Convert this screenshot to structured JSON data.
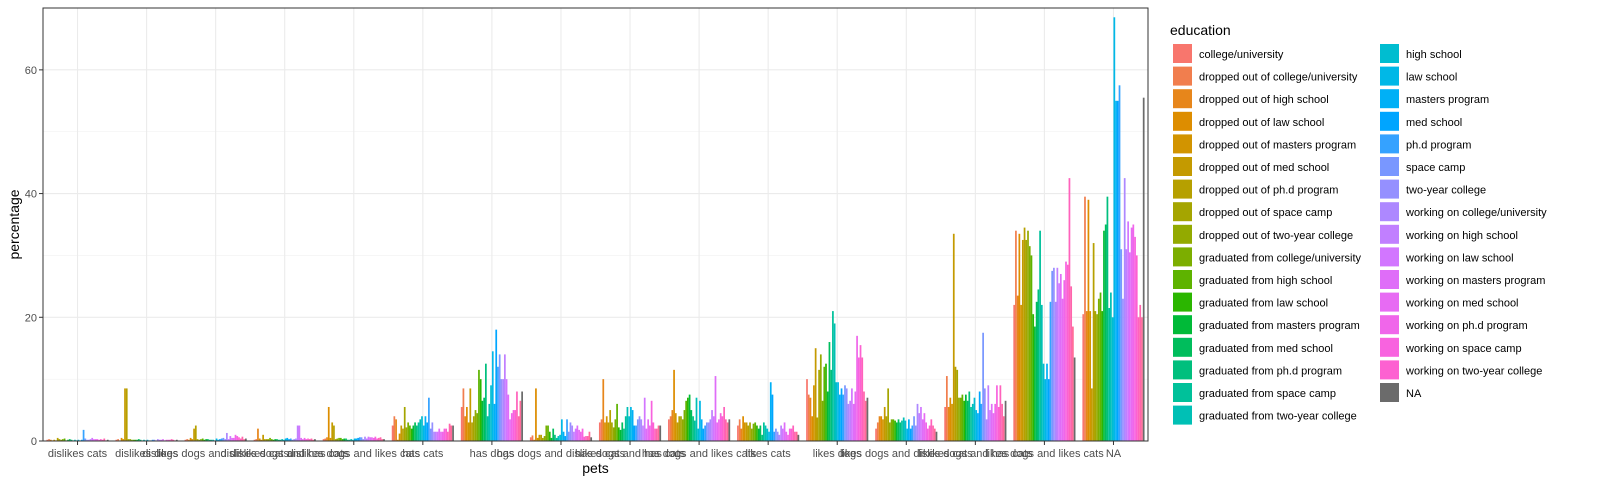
{
  "chart_data": {
    "type": "bar",
    "xlabel": "pets",
    "ylabel": "percentage",
    "ylim": [
      0,
      70
    ],
    "yticks": [
      0,
      20,
      40,
      60
    ],
    "grid": true,
    "legend_position": "right",
    "legend_title": "education",
    "categories": [
      "dislikes cats",
      "dislikes dogs",
      "dislikes dogs and dislikes cats",
      "dislikes dogs and has cats",
      "dislikes dogs and likes cats",
      "has cats",
      "has dogs",
      "has dogs and dislikes cats",
      "has dogs and has cats",
      "has dogs and likes cats",
      "likes cats",
      "likes dogs",
      "likes dogs and dislikes cats",
      "likes dogs and has cats",
      "likes dogs and likes cats",
      "NA"
    ],
    "series": [
      {
        "name": "college/university",
        "color": "#F8766D",
        "values": [
          0.2,
          0.2,
          0.2,
          0.2,
          0.3,
          2.5,
          5.5,
          0.6,
          3,
          3.5,
          2.5,
          10,
          2,
          5.5,
          22,
          20.5
        ]
      },
      {
        "name": "dropped out of college/university",
        "color": "#F17E4E",
        "values": [
          0.3,
          0.3,
          0.3,
          0.3,
          0.4,
          4,
          8.5,
          0.9,
          3.5,
          4,
          3.5,
          7.5,
          3,
          10.5,
          34,
          39.5
        ]
      },
      {
        "name": "dropped out of high school",
        "color": "#E7861B",
        "values": [
          0.2,
          0.1,
          0.2,
          2,
          0.6,
          3.5,
          4,
          0.2,
          10,
          5,
          2,
          7,
          4,
          5.5,
          23.5,
          21
        ]
      },
      {
        "name": "dropped out of law school",
        "color": "#DD8D00",
        "values": [
          0.1,
          0.5,
          0.5,
          0.4,
          5.5,
          0.2,
          5.5,
          8.5,
          3,
          11.5,
          4,
          4,
          4,
          7,
          33.5,
          39
        ]
      },
      {
        "name": "dropped out of masters program",
        "color": "#D29400",
        "values": [
          0.2,
          0.3,
          0.3,
          0.2,
          0.5,
          1.2,
          3,
          0.5,
          4,
          4.5,
          3,
          9,
          3.5,
          6,
          22,
          21
        ]
      },
      {
        "name": "dropped out of med school",
        "color": "#C49A00",
        "values": [
          0.1,
          8.5,
          2,
          1,
          3,
          2.5,
          8.5,
          1,
          3,
          3,
          3,
          15,
          5.5,
          33.5,
          32.5,
          8.5
        ]
      },
      {
        "name": "dropped out of ph.d program",
        "color": "#B6A000",
        "values": [
          0.5,
          8.5,
          2.5,
          0.3,
          2.5,
          2,
          3,
          1,
          5,
          4,
          2.5,
          3.8,
          4,
          12,
          34.5,
          32
        ]
      },
      {
        "name": "dropped out of space camp",
        "color": "#A5A500",
        "values": [
          0.3,
          0.3,
          0.3,
          0.3,
          0.3,
          5.5,
          4,
          0.5,
          3,
          4,
          3,
          11.5,
          8.5,
          11.5,
          32.5,
          21
        ]
      },
      {
        "name": "dropped out of two-year college",
        "color": "#93AA00",
        "values": [
          0.2,
          0.3,
          0.2,
          0.3,
          0.4,
          2.2,
          5,
          0.8,
          2.2,
          3.5,
          2,
          14,
          3,
          7,
          34,
          20.5
        ]
      },
      {
        "name": "graduated from college/university",
        "color": "#7CAE00",
        "values": [
          0.3,
          0.2,
          0.3,
          0.5,
          0.5,
          3,
          4.5,
          2.5,
          3.5,
          5,
          2.8,
          6.5,
          3.5,
          7,
          31.5,
          23
        ]
      },
      {
        "name": "graduated from high school",
        "color": "#5EB300",
        "values": [
          0.4,
          0.2,
          0.4,
          0.3,
          0.5,
          2.5,
          11.5,
          2.5,
          6,
          6.5,
          3,
          12,
          3.5,
          7.5,
          30,
          24
        ]
      },
      {
        "name": "graduated from law school",
        "color": "#2BB600",
        "values": [
          0.1,
          0.2,
          0.2,
          0.2,
          0.3,
          2,
          10,
          1.5,
          2.2,
          7,
          2.5,
          12.5,
          3.3,
          6.5,
          20.5,
          21
        ]
      },
      {
        "name": "graduated from masters program",
        "color": "#00BA38",
        "values": [
          0.2,
          0.2,
          0.3,
          0.3,
          0.4,
          2.5,
          6.5,
          0.5,
          1.8,
          7.5,
          2,
          8,
          3,
          7.5,
          18.5,
          34
        ]
      },
      {
        "name": "graduated from med school",
        "color": "#00BD5C",
        "values": [
          0.3,
          0.3,
          0.3,
          0.3,
          0.4,
          3,
          7,
          2,
          3,
          5,
          2.5,
          16,
          3.5,
          6.5,
          22.5,
          35
        ]
      },
      {
        "name": "graduated from ph.d program",
        "color": "#00BF7D",
        "values": [
          0.2,
          0.2,
          0.2,
          0.2,
          0.2,
          2.5,
          12.5,
          1,
          2,
          4,
          1,
          11.5,
          3,
          8,
          24.5,
          39.5
        ]
      },
      {
        "name": "graduated from space camp",
        "color": "#00C19A",
        "values": [
          0.1,
          0.1,
          0.2,
          0.2,
          0.2,
          3,
          4,
          0.5,
          4,
          3.3,
          3,
          21,
          3.3,
          5.5,
          34,
          21.5
        ]
      },
      {
        "name": "graduated from two-year college",
        "color": "#00C0B5",
        "values": [
          0.2,
          0.2,
          0.2,
          0.3,
          0.3,
          3.5,
          6,
          0.8,
          5.5,
          7,
          2.5,
          19,
          3.8,
          6,
          22,
          24
        ]
      },
      {
        "name": "high school",
        "color": "#00BDD0",
        "values": [
          0.1,
          0.1,
          0.1,
          0.2,
          0.2,
          4,
          9,
          1,
          4,
          2,
          2,
          9.5,
          3.3,
          7,
          12.5,
          20
        ]
      },
      {
        "name": "law school",
        "color": "#00B8E7",
        "values": [
          0.2,
          0.2,
          0.4,
          0.4,
          0.4,
          2.5,
          14.5,
          3.5,
          5.5,
          6.5,
          1.5,
          9.5,
          2,
          5,
          10,
          68.5
        ]
      },
      {
        "name": "masters program",
        "color": "#00B0F6",
        "values": [
          0.1,
          0.1,
          0.2,
          0.5,
          0.4,
          4,
          6,
          1.5,
          5,
          3.5,
          9.5,
          7.5,
          3.5,
          4.5,
          12.5,
          55
        ]
      },
      {
        "name": "med school",
        "color": "#00A5FF",
        "values": [
          0.2,
          0.1,
          0.3,
          0.3,
          0.5,
          3,
          18,
          0.8,
          2.5,
          2,
          7.5,
          8.5,
          2,
          8,
          10,
          55
        ]
      },
      {
        "name": "ph.d program",
        "color": "#35A2FF",
        "values": [
          1.8,
          0.2,
          0.4,
          0.4,
          0.6,
          7,
          12,
          3.5,
          2.5,
          2.5,
          1.5,
          7.5,
          2.5,
          6,
          22.5,
          57.5
        ]
      },
      {
        "name": "space camp",
        "color": "#7997FF",
        "values": [
          0.4,
          0.2,
          0.5,
          0.2,
          0.6,
          2,
          14,
          1.5,
          3.5,
          3,
          2,
          9,
          4,
          17.5,
          27.5,
          31
        ]
      },
      {
        "name": "two-year college",
        "color": "#9590FF",
        "values": [
          0.2,
          0.1,
          0.3,
          0.3,
          0.3,
          3,
          10,
          3,
          4,
          3,
          1.5,
          8.5,
          2.5,
          8.5,
          28,
          23
        ]
      },
      {
        "name": "working on college/university",
        "color": "#AD88FF",
        "values": [
          0.2,
          0.3,
          1.3,
          0.4,
          0.7,
          1.5,
          10,
          2.5,
          3.5,
          3.5,
          1,
          6,
          6,
          3.5,
          22.5,
          42.5
        ]
      },
      {
        "name": "working on high school",
        "color": "#C17FFF",
        "values": [
          0.3,
          0.2,
          0.3,
          2.5,
          0.4,
          1.5,
          14,
          1.5,
          2.5,
          5,
          2.5,
          6.5,
          4.5,
          9,
          28,
          31
        ]
      },
      {
        "name": "working on law school",
        "color": "#D276FF",
        "values": [
          0.5,
          0.2,
          0.8,
          2.5,
          0.7,
          1.5,
          10,
          2,
          7,
          4,
          2,
          8.5,
          5.5,
          5,
          25.5,
          35.5
        ]
      },
      {
        "name": "working on masters program",
        "color": "#DF6DF8",
        "values": [
          0.3,
          0.3,
          0.5,
          0.5,
          0.6,
          2,
          7.5,
          2.5,
          2,
          10.5,
          3,
          6,
          3.5,
          6,
          27,
          30.5
        ]
      },
      {
        "name": "working on med school",
        "color": "#E76BF3",
        "values": [
          0.3,
          0.1,
          0.5,
          0.3,
          0.6,
          1.5,
          3.5,
          1.8,
          3.5,
          3,
          1.5,
          8,
          4.5,
          4.5,
          23,
          34.5
        ]
      },
      {
        "name": "working on ph.d program",
        "color": "#F066EA",
        "values": [
          0.3,
          0.2,
          1,
          0.5,
          0.5,
          1.5,
          4.5,
          1.5,
          2.5,
          3.5,
          1,
          17,
          3,
          6,
          26,
          35
        ]
      },
      {
        "name": "working on space camp",
        "color": "#F863DF",
        "values": [
          0.2,
          0.2,
          0.8,
          0.3,
          0.7,
          2,
          5,
          2,
          6.5,
          4.5,
          2,
          13.5,
          2,
          9,
          29,
          33
        ]
      },
      {
        "name": "working on two-year college",
        "color": "#FD61D1",
        "values": [
          0.3,
          0.2,
          0.6,
          0.4,
          0.4,
          2,
          5,
          0.7,
          3,
          4,
          2,
          15.5,
          2.5,
          5.5,
          28.5,
          30
        ]
      },
      {
        "name": "",
        "color": "#FF62BC",
        "values": [
          0.2,
          0.3,
          0.4,
          0.3,
          0.5,
          1.5,
          8,
          0.8,
          2,
          5.5,
          2.5,
          13.5,
          3.5,
          9,
          42.5,
          20
        ]
      },
      {
        "name": "",
        "color": "#FF65AB",
        "values": [
          0.4,
          0.2,
          0.7,
          0.4,
          0.6,
          2.8,
          4,
          0.8,
          2,
          3.5,
          1.5,
          8,
          2.5,
          6,
          25,
          22
        ]
      },
      {
        "name": "",
        "color": "#FF6A98",
        "values": [
          0.1,
          0.1,
          0.3,
          0.2,
          0.3,
          2.5,
          6.5,
          1.5,
          2.5,
          3,
          1.5,
          6.5,
          2,
          4,
          18.5,
          20
        ]
      },
      {
        "name": "NA",
        "color": "#6B6B6B",
        "values": [
          0.2,
          0.2,
          0.4,
          0.3,
          0.3,
          2.5,
          8,
          0.6,
          2.5,
          3.5,
          1,
          7,
          1.5,
          6.5,
          13.5,
          55.5
        ]
      }
    ]
  },
  "legend": {
    "title": "education",
    "col1": [
      "college/university",
      "dropped out of college/university",
      "dropped out of high school",
      "dropped out of law school",
      "dropped out of masters program",
      "dropped out of med school",
      "dropped out of ph.d program",
      "dropped out of space camp",
      "dropped out of two-year college",
      "graduated from college/university",
      "graduated from high school",
      "graduated from law school",
      "graduated from masters program",
      "graduated from med school",
      "graduated from ph.d program",
      "graduated from space camp",
      "graduated from two-year college"
    ],
    "col1_colors": [
      "#F8766D",
      "#F17E4E",
      "#E7861B",
      "#DD8D00",
      "#D29400",
      "#C49A00",
      "#B6A000",
      "#A5A500",
      "#93AA00",
      "#7CAE00",
      "#5EB300",
      "#2BB600",
      "#00BA38",
      "#00BD5C",
      "#00BF7D",
      "#00C19A",
      "#00C0B5"
    ],
    "col2": [
      "high school",
      "law school",
      "masters program",
      "med school",
      "ph.d program",
      "space camp",
      "two-year college",
      "working on college/university",
      "working on high school",
      "working on law school",
      "working on masters program",
      "working on med school",
      "working on ph.d program",
      "working on space camp",
      "working on two-year college",
      "NA"
    ],
    "col2_colors": [
      "#00BDD0",
      "#00B8E7",
      "#00B0F6",
      "#00A5FF",
      "#35A2FF",
      "#7997FF",
      "#9590FF",
      "#AD88FF",
      "#C17FFF",
      "#D276FF",
      "#DF6DF8",
      "#E76BF3",
      "#F066EA",
      "#F863DF",
      "#FD61D1",
      "#6B6B6B"
    ]
  }
}
